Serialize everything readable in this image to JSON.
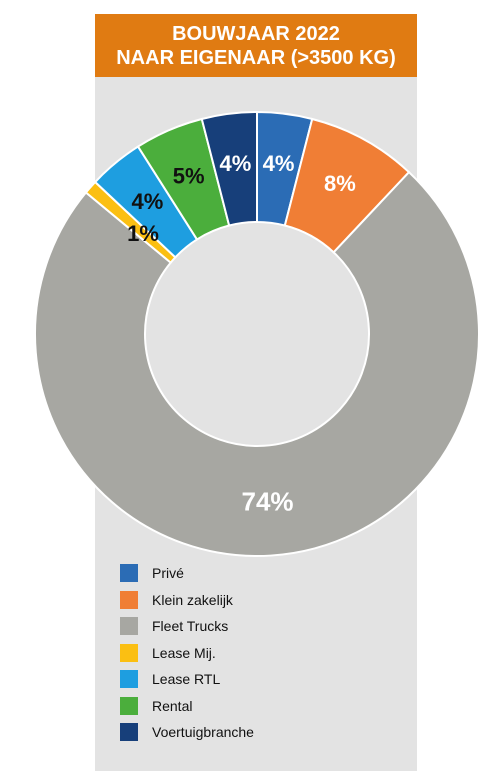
{
  "title": {
    "line1": "BOUWJAAR 2022",
    "line2": "NAAR EIGENAAR (>3500 KG)"
  },
  "colors": {
    "title_bg": "#e07b12",
    "panel_bg": "#e3e3e3"
  },
  "chart_data": {
    "type": "pie",
    "donut": true,
    "title": "BOUWJAAR 2022 NAAR EIGENAAR (>3500 KG)",
    "start_angle_deg": 0,
    "direction": "clockwise",
    "slices": [
      {
        "name": "Privé",
        "value": 4,
        "label": "4%",
        "color": "#2b6cb5",
        "label_color": "#ffffff"
      },
      {
        "name": "Klein zakelijk",
        "value": 8,
        "label": "8%",
        "color": "#f07e35",
        "label_color": "#ffffff"
      },
      {
        "name": "Fleet Trucks",
        "value": 74,
        "label": "74%",
        "color": "#a7a7a2",
        "label_color": "#ffffff"
      },
      {
        "name": "Lease Mij.",
        "value": 1,
        "label": "1%",
        "color": "#fbbf12",
        "label_color": "#111111"
      },
      {
        "name": "Lease RTL",
        "value": 4,
        "label": "4%",
        "color": "#1e9ee0",
        "label_color": "#111111"
      },
      {
        "name": "Rental",
        "value": 5,
        "label": "5%",
        "color": "#4bae3c",
        "label_color": "#111111"
      },
      {
        "name": "Voertuigbranche",
        "value": 4,
        "label": "4%",
        "color": "#173f7a",
        "label_color": "#ffffff"
      }
    ],
    "legend": [
      "Privé",
      "Klein zakelijk",
      "Fleet Trucks",
      "Lease Mij.",
      "Lease RTL",
      "Rental",
      "Voertuigbranche"
    ]
  }
}
